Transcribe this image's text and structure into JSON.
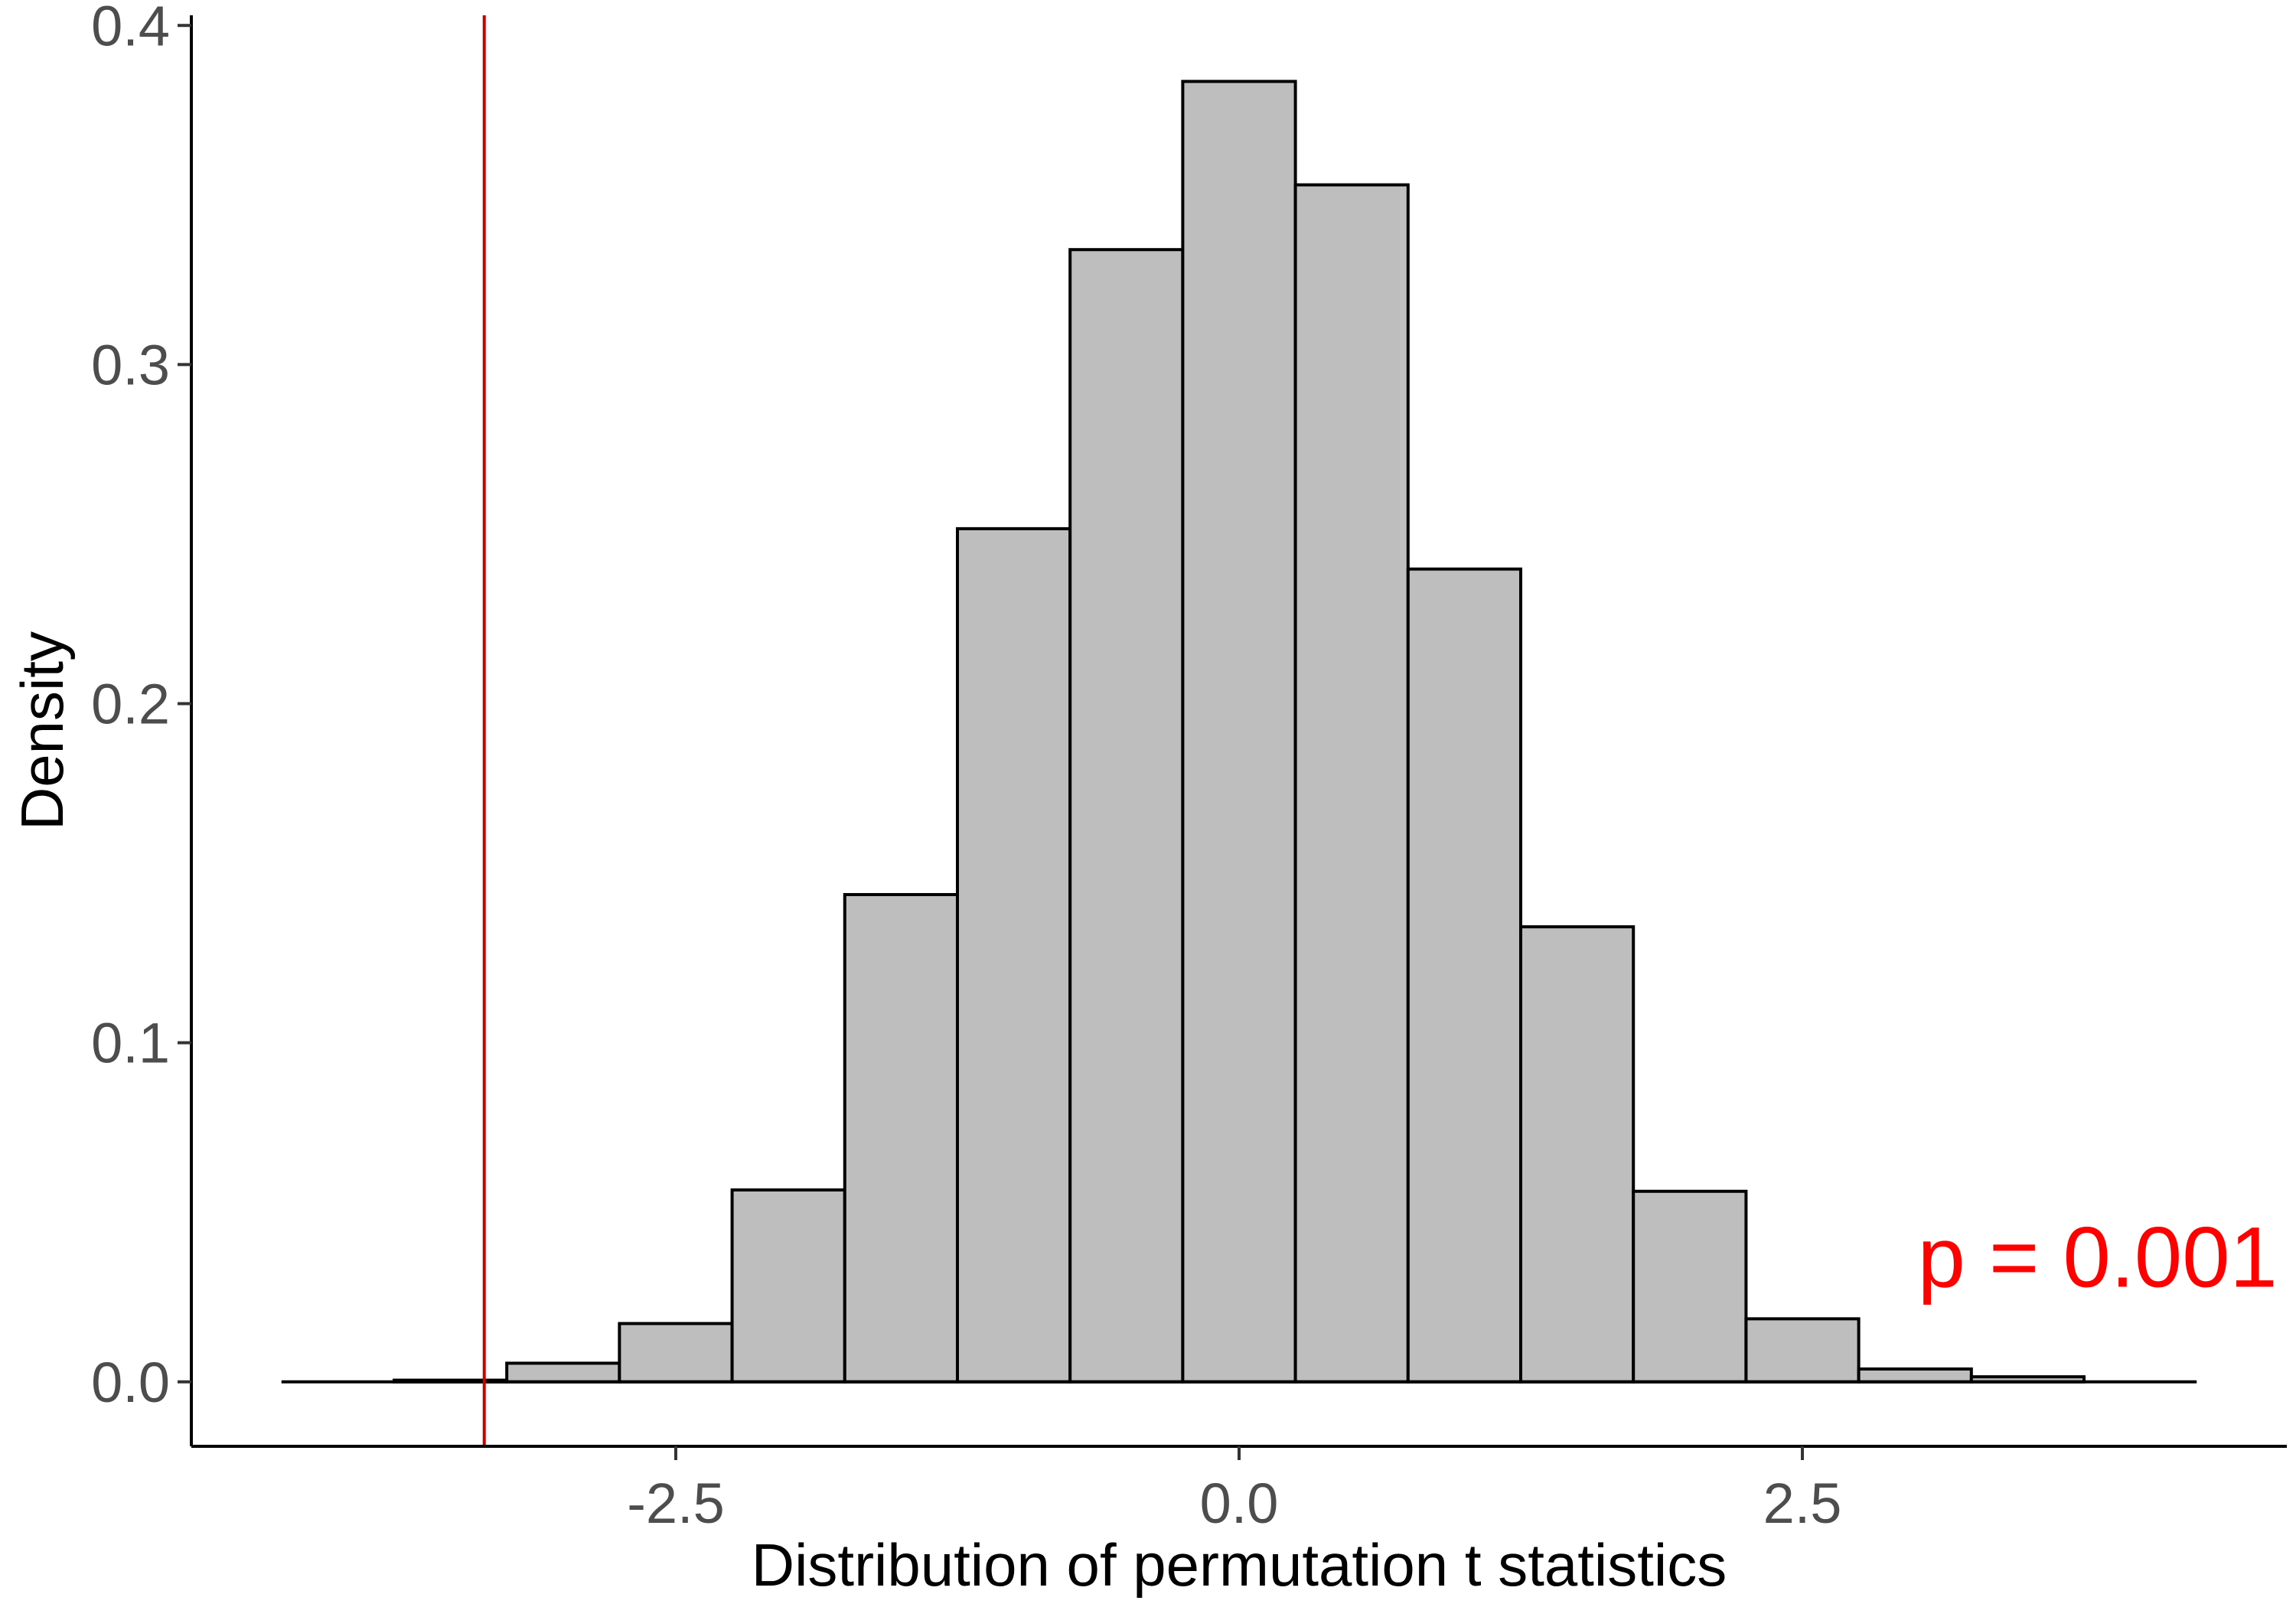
{
  "chart_data": {
    "type": "bar",
    "subtype": "histogram",
    "xlabel": "Distribution of permutation t statistics",
    "ylabel": "Density",
    "xlim": [
      -4.65,
      4.65
    ],
    "ylim": [
      -0.019,
      0.403
    ],
    "x_ticks": [
      {
        "value": -2.5,
        "label": "-2.5"
      },
      {
        "value": 0.0,
        "label": "0.0"
      },
      {
        "value": 2.5,
        "label": "2.5"
      }
    ],
    "y_ticks": [
      {
        "value": 0.0,
        "label": "0.0"
      },
      {
        "value": 0.1,
        "label": "0.1"
      },
      {
        "value": 0.2,
        "label": "0.2"
      },
      {
        "value": 0.3,
        "label": "0.3"
      },
      {
        "value": 0.4,
        "label": "0.4"
      }
    ],
    "bins": [
      {
        "x0": -4.25,
        "x1": -3.75,
        "density": 0.0
      },
      {
        "x0": -3.75,
        "x1": -3.25,
        "density": 0.0005
      },
      {
        "x0": -3.25,
        "x1": -2.75,
        "density": 0.0055
      },
      {
        "x0": -2.75,
        "x1": -2.25,
        "density": 0.0172
      },
      {
        "x0": -2.25,
        "x1": -1.75,
        "density": 0.0566
      },
      {
        "x0": -1.75,
        "x1": -1.25,
        "density": 0.1437
      },
      {
        "x0": -1.25,
        "x1": -0.75,
        "density": 0.2516
      },
      {
        "x0": -0.75,
        "x1": -0.25,
        "density": 0.3339
      },
      {
        "x0": -0.25,
        "x1": 0.25,
        "density": 0.3835
      },
      {
        "x0": 0.25,
        "x1": 0.75,
        "density": 0.353
      },
      {
        "x0": 0.75,
        "x1": 1.25,
        "density": 0.2397
      },
      {
        "x0": 1.25,
        "x1": 1.75,
        "density": 0.1342
      },
      {
        "x0": 1.75,
        "x1": 2.25,
        "density": 0.0562
      },
      {
        "x0": 2.25,
        "x1": 2.75,
        "density": 0.0186
      },
      {
        "x0": 2.75,
        "x1": 3.25,
        "density": 0.0038
      },
      {
        "x0": 3.25,
        "x1": 3.75,
        "density": 0.0015
      },
      {
        "x0": 3.75,
        "x1": 4.25,
        "density": 0.0
      }
    ],
    "bar_fill": "#bebebe",
    "bar_stroke": "#000000",
    "reference_line": {
      "x": -3.35,
      "color": "#cc0000"
    },
    "annotation": {
      "text": "p = 0.001",
      "x": 3.81,
      "y": 0.028,
      "color": "#ff0000"
    },
    "grid": false,
    "legend": "none"
  }
}
